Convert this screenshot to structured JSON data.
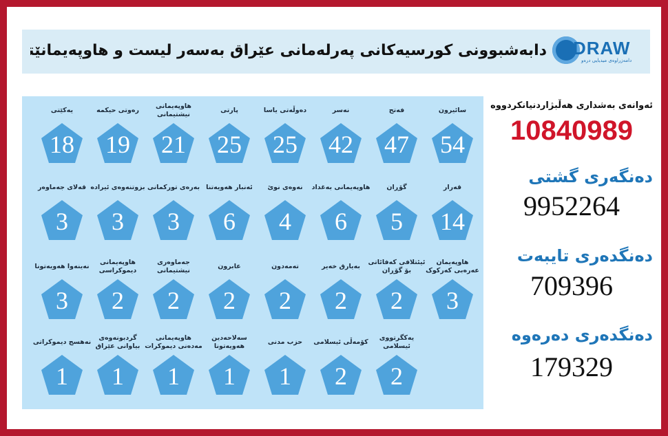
{
  "header": {
    "title": "دابەشبوونی کورسیەکانی پەرلەمانی عێراق بەسەر لیست و هاوپەیمانێتیەکاندا",
    "logo_text": "DRAW",
    "logo_sub": "دامەزراوەی میدیایی درەو"
  },
  "stats": {
    "participants_label": "ئەوانەی بەشداری هەڵبژاردنیانکردووە",
    "participants_value": "10840989",
    "general_label": "دەنگەری گشتی",
    "general_value": "9952264",
    "special_label": "دەنگدەری تایبەت",
    "special_value": "709396",
    "abroad_label": "دەنگدەری دەرەوە",
    "abroad_value": "179329"
  },
  "rows": [
    [
      {
        "label": "سائیرون",
        "seats": "54"
      },
      {
        "label": "فەتح",
        "seats": "47"
      },
      {
        "label": "نەسر",
        "seats": "42"
      },
      {
        "label": "دەوڵەتی یاسا",
        "seats": "25"
      },
      {
        "label": "پارتی",
        "seats": "25"
      },
      {
        "label": "هاوپەیمانی نیشتیمانی",
        "seats": "21"
      },
      {
        "label": "رەوتی حیکمە",
        "seats": "19"
      },
      {
        "label": "یەکێتی",
        "seats": "18"
      }
    ],
    [
      {
        "label": "قەرار",
        "seats": "14"
      },
      {
        "label": "گۆڕان",
        "seats": "5"
      },
      {
        "label": "هاوپەیمانی بەغداد",
        "seats": "6"
      },
      {
        "label": "نەوەی نوێ",
        "seats": "4"
      },
      {
        "label": "ئەنبار هەویەتنا",
        "seats": "6"
      },
      {
        "label": "بەرەی تورکمانی",
        "seats": "3"
      },
      {
        "label": "بزوتنەوەی ئیرادە",
        "seats": "3"
      },
      {
        "label": "قەلای جەماوەر",
        "seats": "3"
      }
    ],
    [
      {
        "label": "هاوپەیمان عەرەبی کەرکوک",
        "seats": "3"
      },
      {
        "label": "ئیئتلافی کەفائاتی بۆ گۆڕان",
        "seats": "2"
      },
      {
        "label": "بەیارق خەیر",
        "seats": "2"
      },
      {
        "label": "تەمەدون",
        "seats": "2"
      },
      {
        "label": "عابرون",
        "seats": "2"
      },
      {
        "label": "جەماوەری نیشتیمانی",
        "seats": "2"
      },
      {
        "label": "هاوپەیمانی دیموکراسی",
        "seats": "2"
      },
      {
        "label": "نەینەوا هەویەتونا",
        "seats": "3"
      }
    ],
    [
      {
        "label": "یەکگرتووی ئیسلامی",
        "seats": "2"
      },
      {
        "label": "کۆمەڵی ئیسلامی",
        "seats": "2"
      },
      {
        "label": "حزب مدنی",
        "seats": "1"
      },
      {
        "label": "سەلاحەدین هەویەتونا",
        "seats": "1"
      },
      {
        "label": "هاوپەیمانی مەدەنی دیموکرات",
        "seats": "1"
      },
      {
        "label": "گردبونەوەی بیاوانی عێراق",
        "seats": "1"
      },
      {
        "label": "نەهسج دیموکراتی",
        "seats": "1"
      }
    ]
  ],
  "colors": {
    "frame": "#b4182e",
    "pentagon": "#4fa3dc",
    "board": "#bfe3f8",
    "red_value": "#d0152a",
    "blue_label": "#1f76b8"
  }
}
